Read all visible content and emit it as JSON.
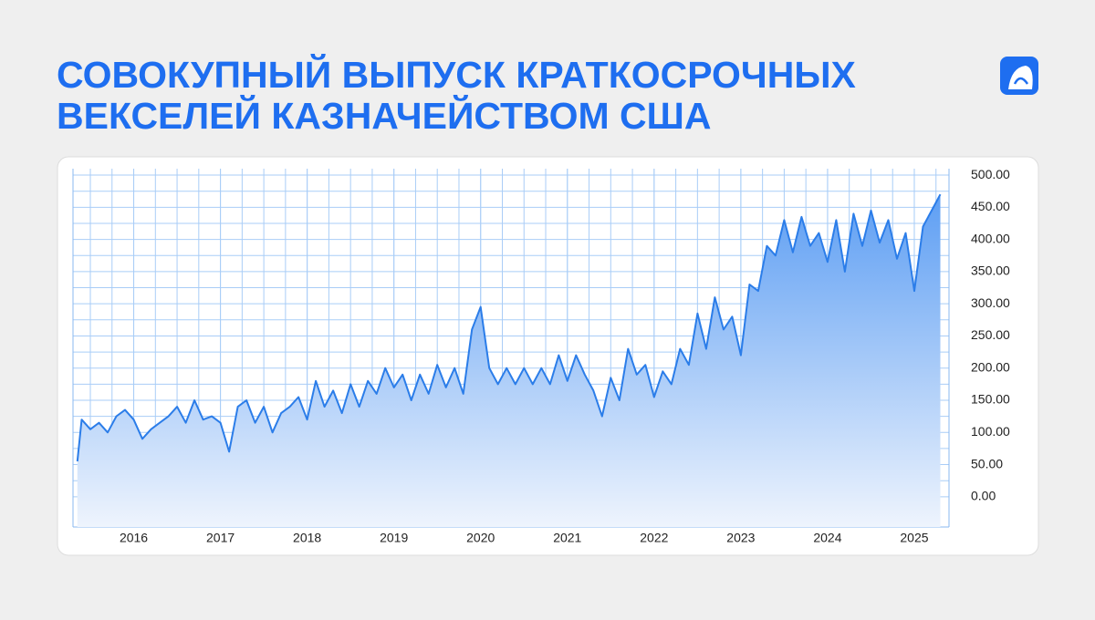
{
  "chart_data": {
    "type": "area",
    "title": [
      "СОВОКУПНЫЙ ВЫПУСК КРАТКОСРОЧНЫХ",
      "ВЕКСЕЛЕЙ КАЗНАЧЕЙСТВОМ США"
    ],
    "color": "#2b7de9",
    "x": [
      2015.35,
      2015.4,
      2015.5,
      2015.6,
      2015.7,
      2015.8,
      2015.9,
      2016.0,
      2016.1,
      2016.2,
      2016.3,
      2016.4,
      2016.5,
      2016.6,
      2016.7,
      2016.8,
      2016.9,
      2017.0,
      2017.1,
      2017.2,
      2017.3,
      2017.4,
      2017.5,
      2017.6,
      2017.7,
      2017.8,
      2017.9,
      2018.0,
      2018.1,
      2018.2,
      2018.3,
      2018.4,
      2018.5,
      2018.6,
      2018.7,
      2018.8,
      2018.9,
      2019.0,
      2019.1,
      2019.2,
      2019.3,
      2019.4,
      2019.5,
      2019.6,
      2019.7,
      2019.8,
      2019.9,
      2020.0,
      2020.1,
      2020.2,
      2020.3,
      2020.4,
      2020.5,
      2020.6,
      2020.7,
      2020.8,
      2020.9,
      2021.0,
      2021.1,
      2021.2,
      2021.3,
      2021.4,
      2021.5,
      2021.6,
      2021.7,
      2021.8,
      2021.9,
      2022.0,
      2022.1,
      2022.2,
      2022.3,
      2022.4,
      2022.5,
      2022.6,
      2022.7,
      2022.8,
      2022.9,
      2023.0,
      2023.1,
      2023.2,
      2023.3,
      2023.4,
      2023.5,
      2023.6,
      2023.7,
      2023.8,
      2023.9,
      2024.0,
      2024.1,
      2024.2,
      2024.3,
      2024.4,
      2024.5,
      2024.6,
      2024.7,
      2024.8,
      2024.9,
      2025.0,
      2025.1,
      2025.2,
      2025.3
    ],
    "values": [
      55,
      120,
      105,
      115,
      100,
      125,
      135,
      120,
      90,
      105,
      115,
      125,
      140,
      115,
      150,
      120,
      125,
      115,
      70,
      140,
      150,
      115,
      140,
      100,
      130,
      140,
      155,
      120,
      180,
      140,
      165,
      130,
      175,
      140,
      180,
      160,
      200,
      170,
      190,
      150,
      190,
      160,
      205,
      170,
      200,
      160,
      260,
      295,
      200,
      175,
      200,
      175,
      200,
      175,
      200,
      175,
      220,
      180,
      220,
      190,
      165,
      125,
      185,
      150,
      230,
      190,
      205,
      155,
      195,
      175,
      230,
      205,
      285,
      230,
      310,
      260,
      280,
      220,
      330,
      320,
      390,
      375,
      430,
      380,
      435,
      390,
      410,
      365,
      430,
      350,
      440,
      390,
      445,
      395,
      430,
      370,
      410,
      320,
      420,
      445,
      470
    ],
    "xlim": [
      2015.3,
      2025.4
    ],
    "xticks": [
      2016,
      2017,
      2018,
      2019,
      2020,
      2021,
      2022,
      2023,
      2024,
      2025
    ],
    "ylim": [
      -47,
      510
    ],
    "yticks": [
      {
        "value": 0,
        "label": "0.00"
      },
      {
        "value": 50,
        "label": "50.00"
      },
      {
        "value": 100,
        "label": "100.00"
      },
      {
        "value": 150,
        "label": "150.00"
      },
      {
        "value": 200,
        "label": "200.00"
      },
      {
        "value": 250,
        "label": "250.00"
      },
      {
        "value": 300,
        "label": "300.00"
      },
      {
        "value": 350,
        "label": "350.00"
      },
      {
        "value": 400,
        "label": "400.00"
      },
      {
        "value": 450,
        "label": "450.00"
      },
      {
        "value": 500,
        "label": "500.00"
      }
    ],
    "grid": true
  }
}
